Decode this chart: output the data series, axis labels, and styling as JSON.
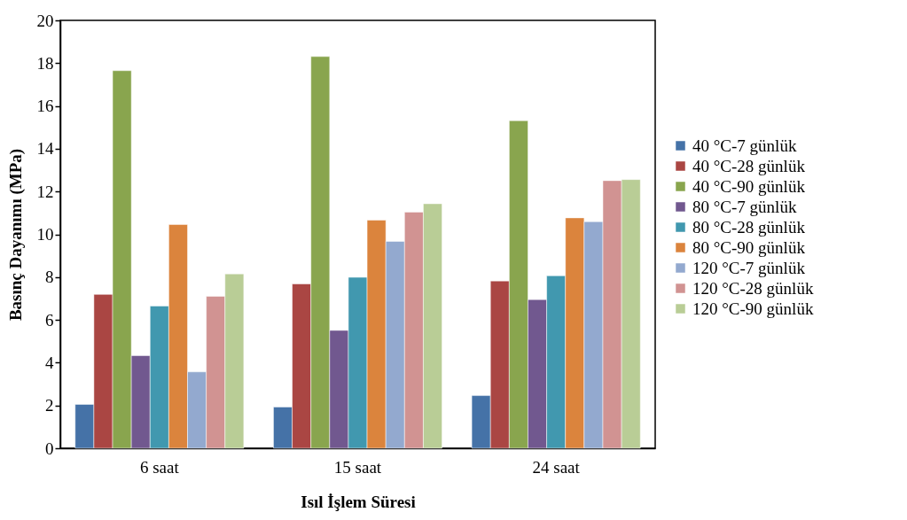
{
  "chart_data": {
    "type": "bar",
    "xlabel": "Isıl İşlem Süresi",
    "ylabel": "Basınç Dayanımı (MPa)",
    "categories": [
      "6 saat",
      "15 saat",
      "24 saat"
    ],
    "series": [
      {
        "name": "40 °C-7 günlük",
        "color": "#4572a7",
        "values": [
          2.05,
          1.93,
          2.46
        ]
      },
      {
        "name": "40 °C-28 günlük",
        "color": "#aa4643",
        "values": [
          7.19,
          7.68,
          7.82
        ]
      },
      {
        "name": "40 °C-90 günlük",
        "color": "#89a54e",
        "values": [
          17.65,
          18.31,
          15.31
        ]
      },
      {
        "name": "80 °C-7 günlük",
        "color": "#71588f",
        "values": [
          4.33,
          5.51,
          6.95
        ]
      },
      {
        "name": "80 °C-28 günlük",
        "color": "#4198af",
        "values": [
          6.65,
          7.99,
          8.06
        ]
      },
      {
        "name": "80 °C-90 günlük",
        "color": "#db843d",
        "values": [
          10.46,
          10.66,
          10.77
        ]
      },
      {
        "name": "120 °C-7 günlük",
        "color": "#93a9cf",
        "values": [
          3.57,
          9.67,
          10.59
        ]
      },
      {
        "name": "120 °C-28 günlük",
        "color": "#d19392",
        "values": [
          7.1,
          11.04,
          12.51
        ]
      },
      {
        "name": "120 °C-90 günlük",
        "color": "#b9cd96",
        "values": [
          8.15,
          11.43,
          12.56
        ]
      }
    ],
    "ylim": [
      0,
      20
    ],
    "yticks": [
      0,
      2,
      4,
      6,
      8,
      10,
      12,
      14,
      16,
      18,
      20
    ],
    "grid": false,
    "legend": "right"
  }
}
